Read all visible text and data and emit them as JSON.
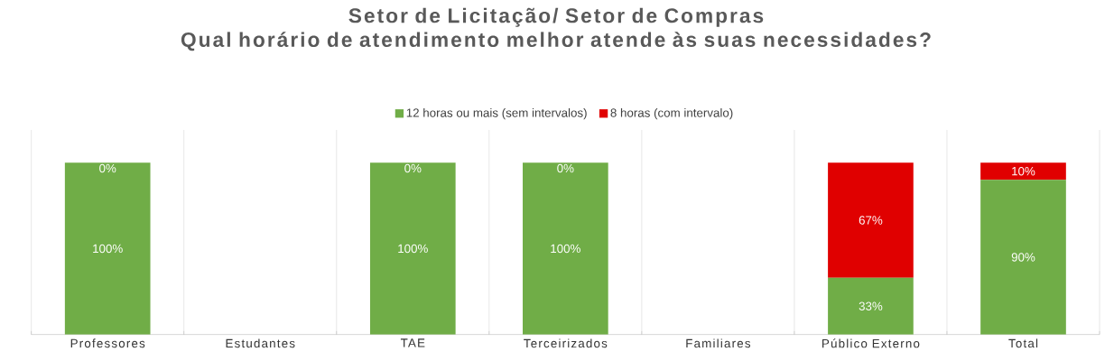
{
  "chart_data": {
    "type": "bar",
    "stacked": true,
    "title": "Setor de Licitação/ Setor de Compras\nQual horário de atendimento melhor atende às suas necessidades?",
    "categories": [
      "Professores",
      "Estudantes",
      "TAE",
      "Terceirizados",
      "Familiares",
      "Público Externo",
      "Total"
    ],
    "series": [
      {
        "name": "12 horas ou mais (sem intervalos)",
        "color": "#70ad47",
        "values": [
          100,
          null,
          100,
          100,
          null,
          33,
          90
        ],
        "value_labels": [
          "100%",
          null,
          "100%",
          "100%",
          null,
          "33%",
          "90%"
        ]
      },
      {
        "name": "8 horas (com intervalo)",
        "color": "#e00000",
        "values": [
          0,
          null,
          0,
          0,
          null,
          67,
          10
        ],
        "value_labels": [
          "0%",
          null,
          "0%",
          "0%",
          null,
          "67%",
          "10%"
        ]
      }
    ],
    "legend": "top",
    "grid": "x",
    "tick_labels": "x"
  }
}
